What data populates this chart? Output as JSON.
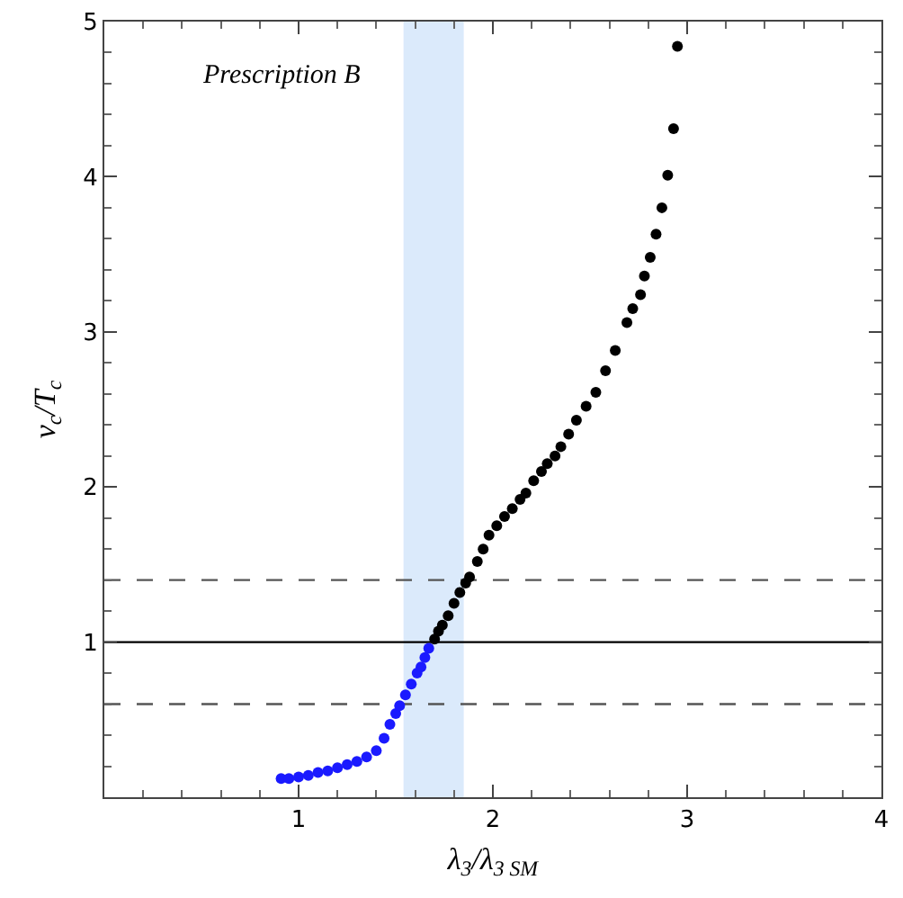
{
  "chart_data": {
    "type": "scatter",
    "xlabel": "λ$_{3}$/λ$_{3 SM}$",
    "ylabel": "v$_{c}$/T$_{c}$",
    "annotations": [
      "Prescription B"
    ],
    "xlim": [
      0,
      4
    ],
    "xticks": [
      1,
      2,
      3,
      4
    ],
    "ylim": [
      0,
      5
    ],
    "yticks": [
      1,
      2,
      3,
      4,
      5
    ],
    "grid": false,
    "marker": "circle",
    "ref_lines": [
      {
        "axis": "y",
        "value": 1,
        "line_style": "solid",
        "color": "#000000"
      },
      {
        "axis": "y",
        "value": 1.4,
        "line_style": "dashed",
        "color": "#555555"
      },
      {
        "axis": "y",
        "value": 0.6,
        "line_style": "dashed",
        "color": "#555555"
      }
    ],
    "bands": [
      {
        "axis": "x",
        "from": 1.54,
        "to": 1.85,
        "color": "#dbeafb"
      }
    ],
    "series": [
      {
        "color": "#1a1aff",
        "x": [
          0.91,
          0.95,
          1.0,
          1.05,
          1.1,
          1.15,
          1.2,
          1.25,
          1.3,
          1.35,
          1.4,
          1.44,
          1.47,
          1.5,
          1.52,
          1.55,
          1.58,
          1.61,
          1.63,
          1.65,
          1.67
        ],
        "values": [
          0.12,
          0.12,
          0.13,
          0.14,
          0.16,
          0.17,
          0.19,
          0.21,
          0.23,
          0.26,
          0.3,
          0.38,
          0.47,
          0.54,
          0.59,
          0.66,
          0.73,
          0.8,
          0.84,
          0.9,
          0.96
        ]
      },
      {
        "color": "#000000",
        "x": [
          1.7,
          1.72,
          1.74,
          1.77,
          1.8,
          1.83,
          1.86,
          1.88,
          1.92,
          1.95,
          1.98,
          2.02,
          2.06,
          2.1,
          2.14,
          2.17,
          2.21,
          2.25,
          2.28,
          2.32,
          2.35,
          2.39,
          2.43,
          2.48,
          2.53,
          2.58,
          2.63,
          2.69,
          2.72,
          2.76,
          2.78,
          2.81,
          2.84,
          2.87,
          2.9,
          2.93,
          2.95
        ],
        "values": [
          1.02,
          1.07,
          1.11,
          1.17,
          1.25,
          1.32,
          1.38,
          1.42,
          1.52,
          1.6,
          1.69,
          1.75,
          1.81,
          1.86,
          1.92,
          1.96,
          2.04,
          2.1,
          2.15,
          2.2,
          2.26,
          2.34,
          2.43,
          2.52,
          2.61,
          2.75,
          2.88,
          3.06,
          3.15,
          3.24,
          3.36,
          3.48,
          3.63,
          3.8,
          4.01,
          4.31,
          4.84
        ]
      }
    ]
  }
}
